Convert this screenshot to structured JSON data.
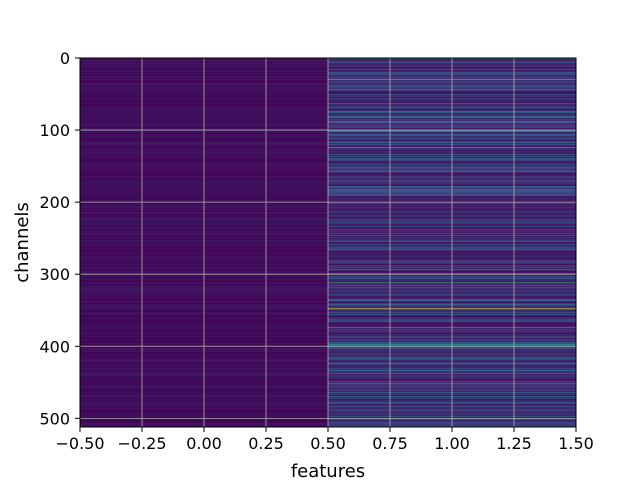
{
  "chart_data": {
    "type": "heatmap",
    "title": "",
    "xlabel": "features",
    "ylabel": "channels",
    "xlim": [
      -0.5,
      1.5
    ],
    "ylim": [
      512,
      0
    ],
    "y_inverted": true,
    "colormap": "viridis",
    "grid": true,
    "x_ticks": [
      "−0.50",
      "−0.25",
      "0.00",
      "0.25",
      "0.50",
      "0.75",
      "1.00",
      "1.25",
      "1.50"
    ],
    "y_ticks": [
      "0",
      "100",
      "200",
      "300",
      "400",
      "500"
    ],
    "n_rows": 512,
    "columns": [
      {
        "feature": 0,
        "x_extent": [
          -0.5,
          0.5
        ],
        "typical_intensity": 0.05
      },
      {
        "feature": 1,
        "x_extent": [
          0.5,
          1.5
        ],
        "typical_intensity": 0.2
      }
    ],
    "highlighted_rows": [
      {
        "feature": 1,
        "channel": 30,
        "intensity": 0.65
      },
      {
        "feature": 1,
        "channel": 88,
        "intensity": 0.5
      },
      {
        "feature": 1,
        "channel": 102,
        "intensity": 0.45
      },
      {
        "feature": 1,
        "channel": 124,
        "intensity": 0.6
      },
      {
        "feature": 1,
        "channel": 186,
        "intensity": 0.4
      },
      {
        "feature": 1,
        "channel": 290,
        "intensity": 0.45
      },
      {
        "feature": 1,
        "channel": 312,
        "intensity": 0.6
      },
      {
        "feature": 1,
        "channel": 348,
        "intensity": 0.9
      },
      {
        "feature": 1,
        "channel": 374,
        "intensity": 0.5
      },
      {
        "feature": 1,
        "channel": 398,
        "intensity": 0.5
      },
      {
        "feature": 1,
        "channel": 452,
        "intensity": 0.45
      },
      {
        "feature": 1,
        "channel": 470,
        "intensity": 0.45
      }
    ]
  }
}
